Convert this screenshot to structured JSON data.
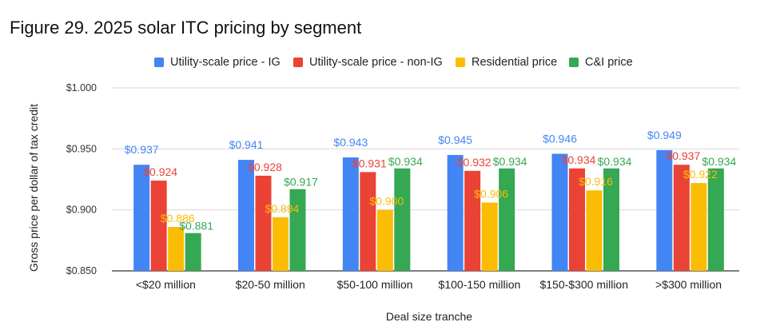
{
  "figure_title": "Figure 29. 2025 solar ITC pricing by segment",
  "chart_data": {
    "type": "bar",
    "title": "Figure 29. 2025 solar ITC pricing by segment",
    "xlabel": "Deal size tranche",
    "ylabel": "Gross price per dollar of tax credit",
    "ylim": [
      0.85,
      1.0
    ],
    "yticks": [
      "$0.850",
      "$0.900",
      "$0.950",
      "$1.000"
    ],
    "ytick_values": [
      0.85,
      0.9,
      0.95,
      1.0
    ],
    "grid": true,
    "legend_position": "top",
    "categories": [
      "<$20 million",
      "$20-50 million",
      "$50-100 million",
      "$100-150 million",
      "$150-$300 million",
      ">$300 million"
    ],
    "series": [
      {
        "name": "Utility-scale price - IG",
        "color": "#4285F4",
        "values": [
          0.937,
          0.941,
          0.943,
          0.945,
          0.946,
          0.949
        ],
        "labels": [
          "$0.937",
          "$0.941",
          "$0.943",
          "$0.945",
          "$0.946",
          "$0.949"
        ]
      },
      {
        "name": "Utility-scale price - non-IG",
        "color": "#EA4335",
        "values": [
          0.924,
          0.928,
          0.931,
          0.932,
          0.934,
          0.937
        ],
        "labels": [
          "$0.924",
          "$0.928",
          "$0.931",
          "$0.932",
          "$0.934",
          "$0.937"
        ]
      },
      {
        "name": "Residential price",
        "color": "#FBBC04",
        "values": [
          0.886,
          0.894,
          0.9,
          0.906,
          0.916,
          0.922
        ],
        "labels": [
          "$0.886",
          "$0.894",
          "$0.900",
          "$0.906",
          "$0.916",
          "$0.922"
        ]
      },
      {
        "name": "C&I price",
        "color": "#34A853",
        "values": [
          0.881,
          0.917,
          0.934,
          0.934,
          0.934,
          0.934
        ],
        "labels": [
          "$0.881",
          "$0.917",
          "$0.934",
          "$0.934",
          "$0.934",
          "$0.934"
        ]
      }
    ]
  }
}
